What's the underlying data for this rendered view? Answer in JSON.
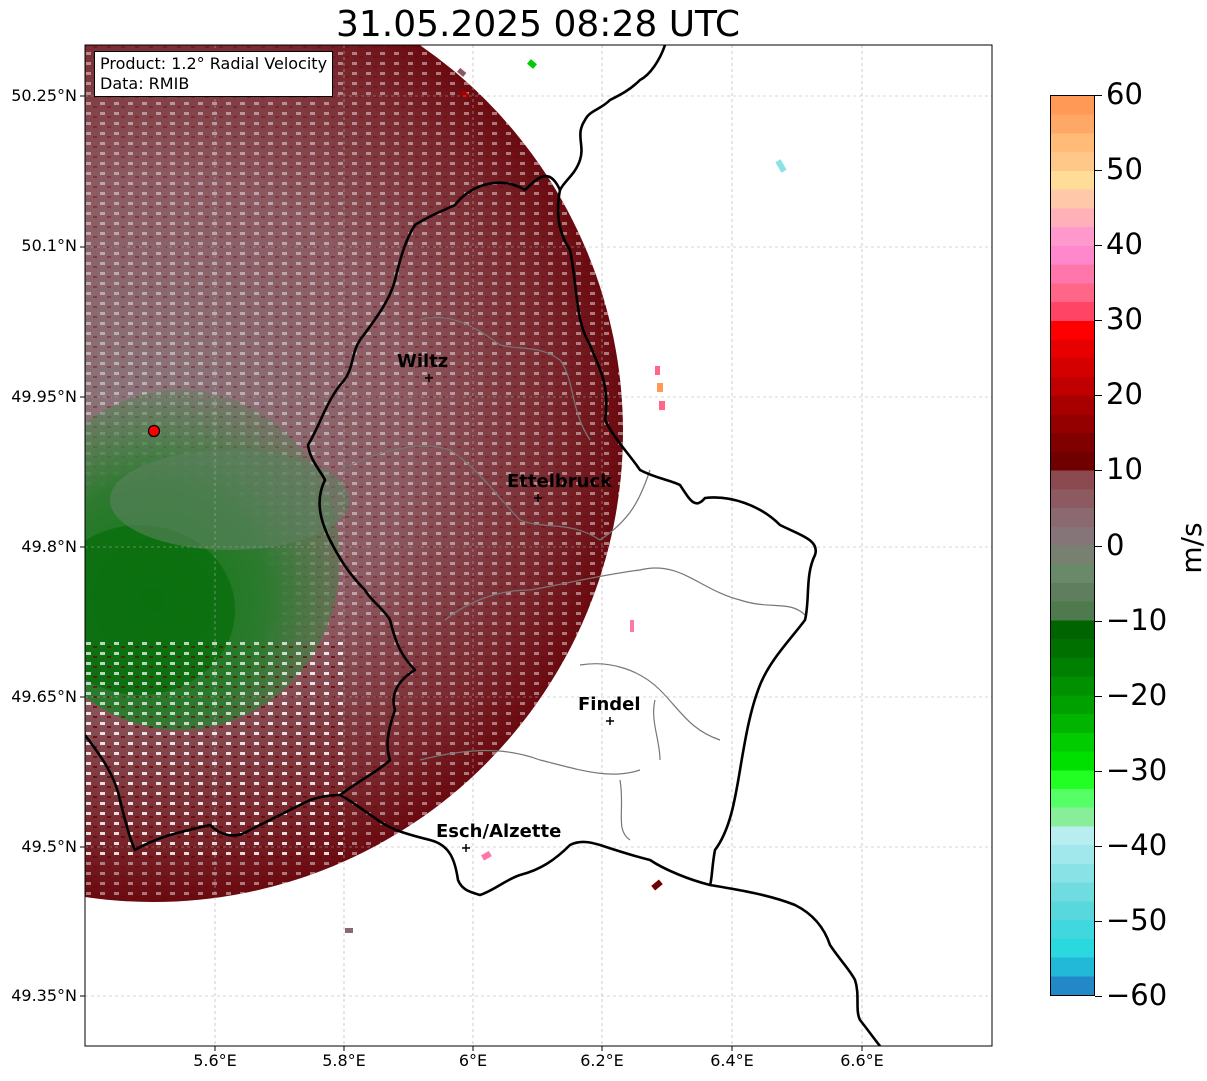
{
  "title": "31.05.2025 08:28 UTC",
  "info": {
    "product": "Product: 1.2° Radial Velocity",
    "data": "Data: RMIB"
  },
  "colorbar": {
    "unit": "m/s",
    "min": -60,
    "max": 60,
    "ticks": [
      "60",
      "50",
      "40",
      "30",
      "20",
      "10",
      "0",
      "−10",
      "−20",
      "−30",
      "−40",
      "−50",
      "−60"
    ],
    "colors": [
      "#ff9955",
      "#ffa866",
      "#ffbb77",
      "#ffc888",
      "#ffdd99",
      "#ffc8a8",
      "#ffb0b8",
      "#ff99cc",
      "#ff88cc",
      "#ff77aa",
      "#ff6688",
      "#ff4466",
      "#ff0000",
      "#e80000",
      "#d40000",
      "#c00000",
      "#a80000",
      "#940000",
      "#800000",
      "#700000",
      "#8a4a50",
      "#8c5a60",
      "#8a6a70",
      "#857578",
      "#788070",
      "#688a68",
      "#5e7e5e",
      "#4e7a4e",
      "#006400",
      "#007000",
      "#008000",
      "#009000",
      "#00a000",
      "#00b400",
      "#00cc00",
      "#00e000",
      "#22ff22",
      "#55ff66",
      "#88ee99",
      "#b8eef0",
      "#a0e8ec",
      "#88e2e6",
      "#70dce0",
      "#58d8dc",
      "#40d8de",
      "#2ad8e0",
      "#22b8d8",
      "#2288c8"
    ],
    "color_desc": "orange-pink-red positive, maroon/grey near zero, green negative, cyan/blue most negative"
  },
  "axes": {
    "lat_labels": [
      "50.25°N",
      "50.1°N",
      "49.95°N",
      "49.8°N",
      "49.65°N",
      "49.5°N",
      "49.35°N"
    ],
    "lon_labels": [
      "5.6°E",
      "5.8°E",
      "6°E",
      "6.2°E",
      "6.4°E",
      "6.6°E"
    ],
    "gridlines": true
  },
  "cities": [
    {
      "name": "Wiltz"
    },
    {
      "name": "Ettelbruck"
    },
    {
      "name": "Findel"
    },
    {
      "name": "Esch/Alzette"
    }
  ]
}
